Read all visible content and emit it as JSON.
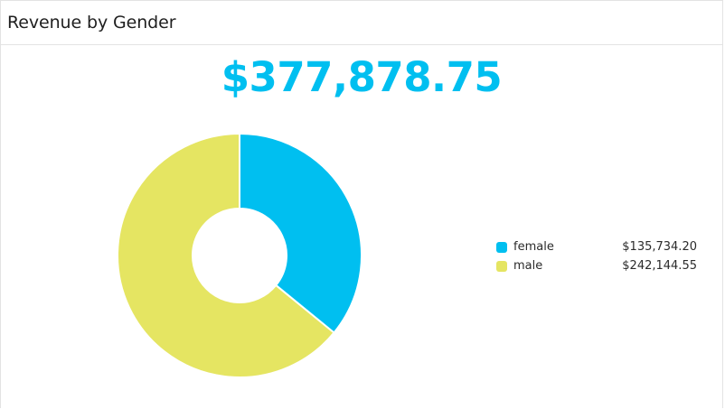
{
  "widget": {
    "title": "Revenue by Gender",
    "total": "$377,878.75"
  },
  "colors": {
    "female": "#00bff0",
    "male": "#e5e562",
    "accent": "#00bff0"
  },
  "chart_data": {
    "type": "pie",
    "title": "Revenue by Gender",
    "donut": true,
    "legend_position": "right",
    "categories": [
      "female",
      "male"
    ],
    "values": [
      135734.2,
      242144.55
    ],
    "value_labels": [
      "$135,734.20",
      "$242,144.55"
    ],
    "series": [
      {
        "name": "female",
        "value": 135734.2,
        "label": "$135,734.20",
        "color": "#00bff0"
      },
      {
        "name": "male",
        "value": 242144.55,
        "label": "$242,144.55",
        "color": "#e5e562"
      }
    ]
  }
}
